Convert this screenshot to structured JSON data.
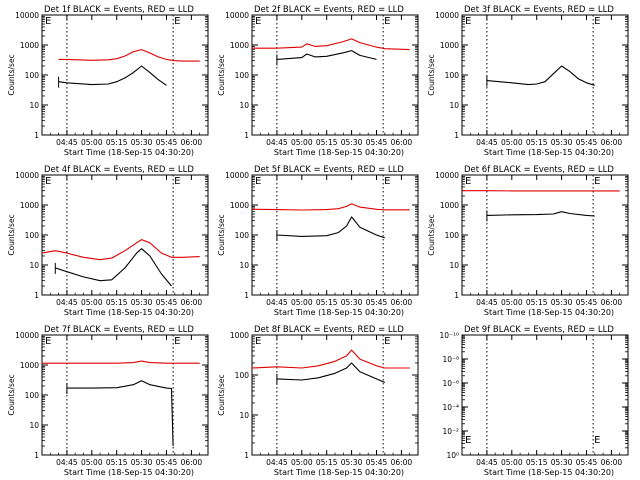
{
  "figure": {
    "x_ticks": [
      "04:45",
      "05:00",
      "05:15",
      "05:30",
      "05:45",
      "06:00"
    ],
    "xlabel": "Start Time (18-Sep-15 04:30:20)",
    "ylabel": "Counts/sec",
    "marker": "E",
    "colors": {
      "events": "#000000",
      "lld": "#e00000",
      "dotted": "#000000"
    }
  },
  "chart_data": [
    {
      "type": "line",
      "title": "Det 1f BLACK = Events, RED = LLD",
      "xlabel": "Start Time (18-Sep-15 04:30:20)",
      "ylabel": "Counts/sec",
      "xlim": [
        "04:30",
        "06:10"
      ],
      "ylim": [
        1,
        10000
      ],
      "yscale": "log",
      "y_ticks": [
        "1",
        "10",
        "100",
        "1000",
        "10000"
      ],
      "x_ticks": [
        "04:45",
        "05:00",
        "05:15",
        "05:30",
        "05:45",
        "06:00"
      ],
      "vlines": [
        "04:45",
        "05:49"
      ],
      "x": [
        "04:30",
        "04:40",
        "04:45",
        "05:00",
        "05:10",
        "05:15",
        "05:20",
        "05:25",
        "05:30",
        "05:35",
        "05:40",
        "05:45",
        "05:50",
        "05:55",
        "06:05"
      ],
      "series": [
        {
          "name": "LLD",
          "color": "red",
          "values": [
            null,
            330,
            330,
            310,
            320,
            350,
            430,
            600,
            700,
            540,
            400,
            330,
            300,
            290,
            290
          ]
        },
        {
          "name": "Events",
          "color": "black",
          "values": [
            null,
            60,
            55,
            48,
            50,
            60,
            80,
            120,
            200,
            120,
            70,
            45,
            null,
            null,
            null
          ]
        }
      ]
    },
    {
      "type": "line",
      "title": "Det 2f BLACK = Events, RED = LLD",
      "xlabel": "Start Time (18-Sep-15 04:30:20)",
      "ylabel": "Counts/sec",
      "xlim": [
        "04:30",
        "06:10"
      ],
      "ylim": [
        1,
        10000
      ],
      "yscale": "log",
      "y_ticks": [
        "1",
        "10",
        "100",
        "1000",
        "10000"
      ],
      "x_ticks": [
        "04:45",
        "05:00",
        "05:15",
        "05:30",
        "05:45",
        "06:00"
      ],
      "vlines": [
        "04:45",
        "05:49"
      ],
      "x": [
        "04:30",
        "04:40",
        "04:45",
        "05:00",
        "05:03",
        "05:08",
        "05:15",
        "05:25",
        "05:30",
        "05:35",
        "05:45",
        "05:50",
        "06:05"
      ],
      "series": [
        {
          "name": "LLD",
          "color": "red",
          "values": [
            780,
            780,
            780,
            850,
            1100,
            900,
            950,
            1300,
            1600,
            1200,
            850,
            750,
            700
          ]
        },
        {
          "name": "Events",
          "color": "black",
          "values": [
            null,
            null,
            330,
            380,
            500,
            400,
            420,
            550,
            650,
            450,
            330,
            null,
            null
          ]
        }
      ]
    },
    {
      "type": "line",
      "title": "Det 3f BLACK = Events, RED = LLD",
      "xlabel": "Start Time (18-Sep-15 04:30:20)",
      "ylabel": "Counts/sec",
      "xlim": [
        "04:30",
        "06:10"
      ],
      "ylim": [
        1,
        10000
      ],
      "yscale": "log",
      "y_ticks": [
        "1",
        "10",
        "100",
        "1000",
        "10000"
      ],
      "x_ticks": [
        "04:45",
        "05:00",
        "05:15",
        "05:30",
        "05:45",
        "06:00"
      ],
      "vlines": [
        "04:45",
        "05:49"
      ],
      "x": [
        "04:45",
        "05:00",
        "05:10",
        "05:15",
        "05:20",
        "05:25",
        "05:30",
        "05:35",
        "05:40",
        "05:45",
        "05:50"
      ],
      "series": [
        {
          "name": "Events",
          "color": "black",
          "values": [
            65,
            55,
            48,
            50,
            60,
            110,
            200,
            130,
            75,
            55,
            45
          ]
        }
      ]
    },
    {
      "type": "line",
      "title": "Det 4f BLACK = Events, RED = LLD",
      "xlabel": "Start Time (18-Sep-15 04:30:20)",
      "ylabel": "Counts/sec",
      "xlim": [
        "04:30",
        "06:10"
      ],
      "ylim": [
        1,
        10000
      ],
      "yscale": "log",
      "y_ticks": [
        "1",
        "10",
        "100",
        "1000",
        "10000"
      ],
      "x_ticks": [
        "04:45",
        "05:00",
        "05:15",
        "05:30",
        "05:45",
        "06:00"
      ],
      "vlines": [
        "04:45",
        "05:49"
      ],
      "x": [
        "04:30",
        "04:38",
        "04:45",
        "04:55",
        "05:05",
        "05:12",
        "05:20",
        "05:27",
        "05:30",
        "05:35",
        "05:42",
        "05:48",
        "05:55",
        "06:05"
      ],
      "series": [
        {
          "name": "LLD",
          "color": "red",
          "values": [
            25,
            30,
            25,
            18,
            15,
            17,
            30,
            55,
            70,
            55,
            25,
            18,
            18,
            19
          ]
        },
        {
          "name": "Events",
          "color": "black",
          "values": [
            null,
            8,
            6,
            4,
            3,
            3.2,
            8,
            25,
            35,
            20,
            5,
            2,
            null,
            null
          ]
        }
      ]
    },
    {
      "type": "line",
      "title": "Det 5f BLACK = Events, RED = LLD",
      "xlabel": "Start Time (18-Sep-15 04:30:20)",
      "ylabel": "Counts/sec",
      "xlim": [
        "04:30",
        "06:10"
      ],
      "ylim": [
        1,
        10000
      ],
      "yscale": "log",
      "y_ticks": [
        "1",
        "10",
        "100",
        "1000",
        "10000"
      ],
      "x_ticks": [
        "04:45",
        "05:00",
        "05:15",
        "05:30",
        "05:45",
        "06:00"
      ],
      "vlines": [
        "04:45",
        "05:49"
      ],
      "x": [
        "04:30",
        "04:45",
        "05:00",
        "05:15",
        "05:22",
        "05:27",
        "05:30",
        "05:35",
        "05:45",
        "05:50",
        "06:05"
      ],
      "series": [
        {
          "name": "LLD",
          "color": "red",
          "values": [
            720,
            700,
            680,
            700,
            750,
            900,
            1100,
            850,
            720,
            690,
            690
          ]
        },
        {
          "name": "Events",
          "color": "black",
          "values": [
            null,
            100,
            90,
            95,
            120,
            200,
            400,
            180,
            100,
            80,
            null
          ]
        }
      ]
    },
    {
      "type": "line",
      "title": "Det 6f BLACK = Events, RED = LLD",
      "xlabel": "Start Time (18-Sep-15 04:30:20)",
      "ylabel": "Counts/sec",
      "xlim": [
        "04:30",
        "06:10"
      ],
      "ylim": [
        1,
        10000
      ],
      "yscale": "log",
      "y_ticks": [
        "1",
        "10",
        "100",
        "1000",
        "10000"
      ],
      "x_ticks": [
        "04:45",
        "05:00",
        "05:15",
        "05:30",
        "05:45",
        "06:00"
      ],
      "vlines": [
        "04:45",
        "05:49"
      ],
      "x": [
        "04:30",
        "04:45",
        "05:00",
        "05:15",
        "05:25",
        "05:30",
        "05:35",
        "05:45",
        "05:50",
        "06:05"
      ],
      "series": [
        {
          "name": "LLD",
          "color": "red",
          "values": [
            3000,
            3000,
            2950,
            2950,
            2950,
            2950,
            2950,
            2950,
            2950,
            2950
          ]
        },
        {
          "name": "Events",
          "color": "black",
          "values": [
            null,
            450,
            470,
            480,
            500,
            600,
            520,
            450,
            430,
            null
          ]
        }
      ]
    },
    {
      "type": "line",
      "title": "Det 7f BLACK = Events, RED = LLD",
      "xlabel": "Start Time (18-Sep-15 04:30:20)",
      "ylabel": "Counts/sec",
      "xlim": [
        "04:30",
        "06:10"
      ],
      "ylim": [
        1,
        10000
      ],
      "yscale": "log",
      "y_ticks": [
        "1",
        "10",
        "100",
        "1000",
        "10000"
      ],
      "x_ticks": [
        "04:45",
        "05:00",
        "05:15",
        "05:30",
        "05:45",
        "06:00"
      ],
      "vlines": [
        "04:45",
        "05:49"
      ],
      "x": [
        "04:30",
        "04:45",
        "05:00",
        "05:15",
        "05:25",
        "05:30",
        "05:35",
        "05:45",
        "05:48",
        "05:49",
        "06:05"
      ],
      "series": [
        {
          "name": "LLD",
          "color": "red",
          "values": [
            1150,
            1150,
            1150,
            1150,
            1200,
            1350,
            1200,
            1150,
            1150,
            1150,
            1150
          ]
        },
        {
          "name": "Events",
          "color": "black",
          "values": [
            null,
            170,
            170,
            175,
            220,
            300,
            220,
            170,
            165,
            2,
            null
          ]
        }
      ]
    },
    {
      "type": "line",
      "title": "Det 8f BLACK = Events, RED = LLD",
      "xlabel": "Start Time (18-Sep-15 04:30:20)",
      "ylabel": "Counts/sec",
      "xlim": [
        "04:30",
        "06:10"
      ],
      "ylim": [
        1,
        1000
      ],
      "yscale": "log",
      "y_ticks": [
        "1",
        "10",
        "100",
        "1000"
      ],
      "x_ticks": [
        "04:45",
        "05:00",
        "05:15",
        "05:30",
        "05:45",
        "06:00"
      ],
      "vlines": [
        "04:45",
        "05:49"
      ],
      "x": [
        "04:30",
        "04:45",
        "05:00",
        "05:10",
        "05:20",
        "05:27",
        "05:30",
        "05:35",
        "05:45",
        "05:50",
        "06:05"
      ],
      "series": [
        {
          "name": "LLD",
          "color": "red",
          "values": [
            150,
            160,
            150,
            170,
            220,
            300,
            420,
            250,
            170,
            150,
            150
          ]
        },
        {
          "name": "Events",
          "color": "black",
          "values": [
            null,
            80,
            75,
            85,
            110,
            150,
            200,
            120,
            80,
            65,
            null
          ]
        }
      ]
    },
    {
      "type": "line",
      "title": "Det 9f BLACK = Events, RED = LLD",
      "xlabel": "Start Time (18-Sep-15 04:30:20)",
      "ylabel": "",
      "xlim": [
        "04:30",
        "06:10"
      ],
      "ylim": [
        1,
        1e-10
      ],
      "yscale": "log",
      "y_ticks": [
        "10⁰",
        "10⁻²",
        "10⁻⁴",
        "10⁻⁶",
        "10⁻⁸",
        "10⁻¹⁰"
      ],
      "x_ticks": [
        "04:45",
        "05:00",
        "05:15",
        "05:30",
        "05:45",
        "06:00"
      ],
      "vlines": [
        "04:45",
        "05:49"
      ],
      "x": [],
      "series": []
    }
  ]
}
